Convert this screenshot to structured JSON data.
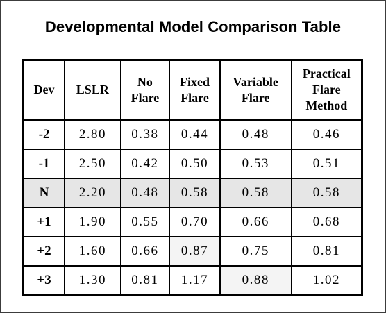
{
  "title": "Developmental Model Comparison Table",
  "table": {
    "headers": [
      [
        "Dev"
      ],
      [
        "LSLR"
      ],
      [
        "No",
        "Flare"
      ],
      [
        "Fixed",
        "Flare"
      ],
      [
        "Variable",
        "Flare"
      ],
      [
        "Practical",
        "Flare",
        "Method"
      ]
    ],
    "rows": [
      {
        "dev": "-2",
        "lslr": "2.80",
        "no_flare": "0.38",
        "fixed_flare": "0.44",
        "variable_flare": "0.48",
        "practical": "0.46"
      },
      {
        "dev": "-1",
        "lslr": "2.50",
        "no_flare": "0.42",
        "fixed_flare": "0.50",
        "variable_flare": "0.53",
        "practical": "0.51"
      },
      {
        "dev": "N",
        "lslr": "2.20",
        "no_flare": "0.48",
        "fixed_flare": "0.58",
        "variable_flare": "0.58",
        "practical": "0.58"
      },
      {
        "dev": "+1",
        "lslr": "1.90",
        "no_flare": "0.55",
        "fixed_flare": "0.70",
        "variable_flare": "0.66",
        "practical": "0.68"
      },
      {
        "dev": "+2",
        "lslr": "1.60",
        "no_flare": "0.66",
        "fixed_flare": "0.87",
        "variable_flare": "0.75",
        "practical": "0.81"
      },
      {
        "dev": "+3",
        "lslr": "1.30",
        "no_flare": "0.81",
        "fixed_flare": "1.17",
        "variable_flare": "0.88",
        "practical": "1.02"
      }
    ]
  },
  "colors": {
    "highlight_row": "#e6e6e6",
    "light_cell": "#f4f4f4",
    "border": "#000000"
  }
}
